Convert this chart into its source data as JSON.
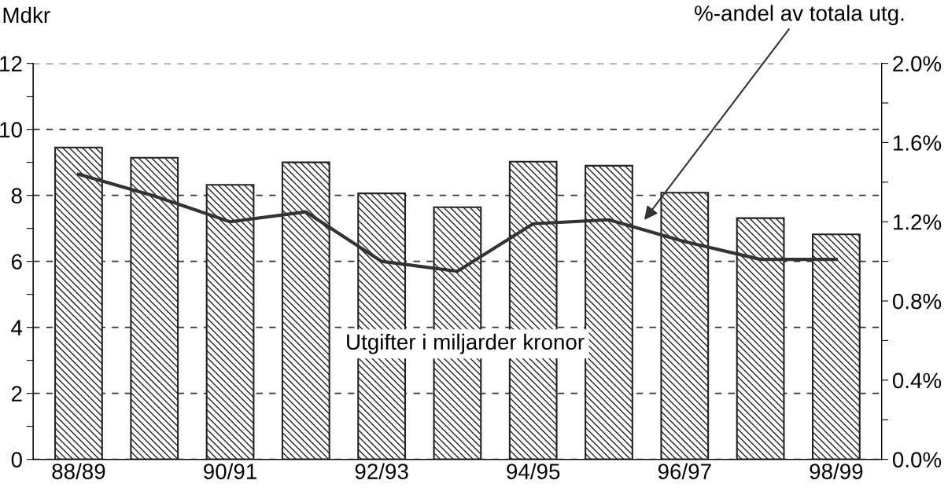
{
  "chart_data": {
    "type": "bar",
    "categories": [
      "88/89",
      null,
      "90/91",
      null,
      "92/93",
      null,
      "94/95",
      null,
      "96/97",
      null,
      "98/99"
    ],
    "series": [
      {
        "color": "#222222",
        "values": [
          9.45,
          9.14,
          8.32,
          9.0,
          8.06,
          7.64,
          9.02,
          8.9,
          8.08,
          7.31,
          6.82
        ]
      },
      {
        "type": "line",
        "axis": "y2",
        "color": "#333333",
        "values": [
          1.44,
          1.33,
          1.2,
          1.25,
          1.0,
          0.95,
          1.19,
          1.21,
          1.1,
          1.01,
          1.01
        ]
      }
    ],
    "ylabel": "Mdkr",
    "ylim": [
      0,
      12
    ],
    "yticks": [
      0,
      {
        "value": 1,
        "label": null
      },
      2,
      {
        "value": 3,
        "label": null
      },
      4,
      {
        "value": 5,
        "label": null
      },
      6,
      {
        "value": 7,
        "label": null
      },
      8,
      {
        "value": 9,
        "label": null
      },
      10,
      {
        "value": 11,
        "label": null
      },
      12
    ],
    "y2lim": [
      0,
      2.0
    ],
    "y2ticks": [
      {
        "value": 0,
        "label": "0.0%"
      },
      {
        "value": 0.2,
        "label": null
      },
      {
        "value": 0.4,
        "label": "0.4%"
      },
      {
        "value": 0.6,
        "label": null
      },
      {
        "value": 0.8,
        "label": "0.8%"
      },
      {
        "value": 1.0,
        "label": null
      },
      {
        "value": 1.2,
        "label": "1.2%"
      },
      {
        "value": 1.4,
        "label": null
      },
      {
        "value": 1.6,
        "label": "1.6%"
      },
      {
        "value": 1.8,
        "label": null
      },
      {
        "value": 2.0,
        "label": "2.0%"
      }
    ],
    "grid": "y",
    "line_style": "solid",
    "marker": "none",
    "annotations": [
      "%-andel av totala utg.",
      "Utgifter i miljarder kronor"
    ]
  }
}
